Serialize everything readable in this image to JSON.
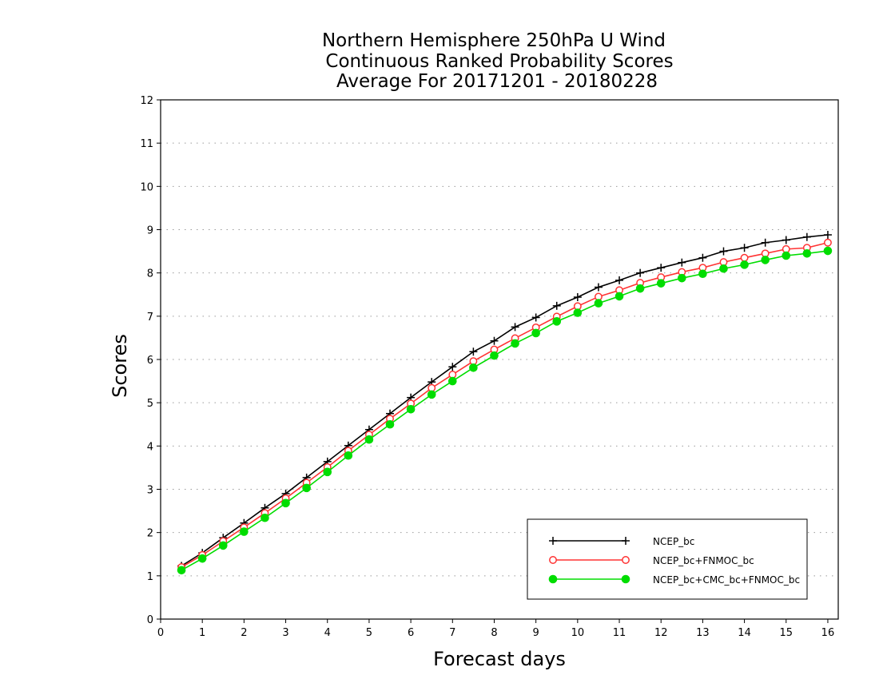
{
  "chart_data": {
    "type": "line",
    "title_lines": [
      "Northern Hemisphere 250hPa U Wind",
      "Continuous Ranked Probability Scores",
      "Average For 20171201 - 20180228"
    ],
    "xlabel": "Forecast days",
    "ylabel": "Scores",
    "xlim": [
      0,
      16.25
    ],
    "ylim": [
      0,
      12
    ],
    "xticks": [
      0,
      1,
      2,
      3,
      4,
      5,
      6,
      7,
      8,
      9,
      10,
      11,
      12,
      13,
      14,
      15,
      16
    ],
    "yticks": [
      0,
      1,
      2,
      3,
      4,
      5,
      6,
      7,
      8,
      9,
      10,
      11,
      12
    ],
    "grid": true,
    "legend_position": "bottom-right",
    "x": [
      0.5,
      1.0,
      1.5,
      2.0,
      2.5,
      3.0,
      3.5,
      4.0,
      4.5,
      5.0,
      5.5,
      6.0,
      6.5,
      7.0,
      7.5,
      8.0,
      8.5,
      9.0,
      9.5,
      10.0,
      10.5,
      11.0,
      11.5,
      12.0,
      12.5,
      13.0,
      13.5,
      14.0,
      14.5,
      15.0,
      15.5,
      16.0
    ],
    "series": [
      {
        "name": "NCEP_bc",
        "color": "#000000",
        "marker": "plus",
        "values": [
          1.23,
          1.53,
          1.88,
          2.22,
          2.57,
          2.9,
          3.27,
          3.64,
          4.01,
          4.38,
          4.75,
          5.12,
          5.48,
          5.83,
          6.18,
          6.43,
          6.75,
          6.97,
          7.24,
          7.44,
          7.67,
          7.83,
          8.0,
          8.12,
          8.24,
          8.35,
          8.5,
          8.58,
          8.7,
          8.76,
          8.83,
          8.88
        ]
      },
      {
        "name": "NCEP_bc+FNMOC_bc",
        "color": "#ff3333",
        "marker": "open-circle",
        "values": [
          1.2,
          1.48,
          1.8,
          2.12,
          2.45,
          2.79,
          3.15,
          3.51,
          3.89,
          4.26,
          4.63,
          4.98,
          5.34,
          5.65,
          5.96,
          6.23,
          6.49,
          6.74,
          6.99,
          7.23,
          7.45,
          7.6,
          7.77,
          7.9,
          8.02,
          8.12,
          8.25,
          8.35,
          8.45,
          8.55,
          8.58,
          8.7
        ]
      },
      {
        "name": "NCEP_bc+CMC_bc+FNMOC_bc",
        "color": "#00dd00",
        "marker": "filled-circle",
        "values": [
          1.13,
          1.4,
          1.7,
          2.02,
          2.34,
          2.68,
          3.03,
          3.4,
          3.78,
          4.15,
          4.5,
          4.85,
          5.19,
          5.5,
          5.81,
          6.09,
          6.37,
          6.61,
          6.88,
          7.08,
          7.3,
          7.46,
          7.64,
          7.76,
          7.88,
          7.98,
          8.1,
          8.19,
          8.3,
          8.4,
          8.45,
          8.51
        ]
      }
    ]
  }
}
